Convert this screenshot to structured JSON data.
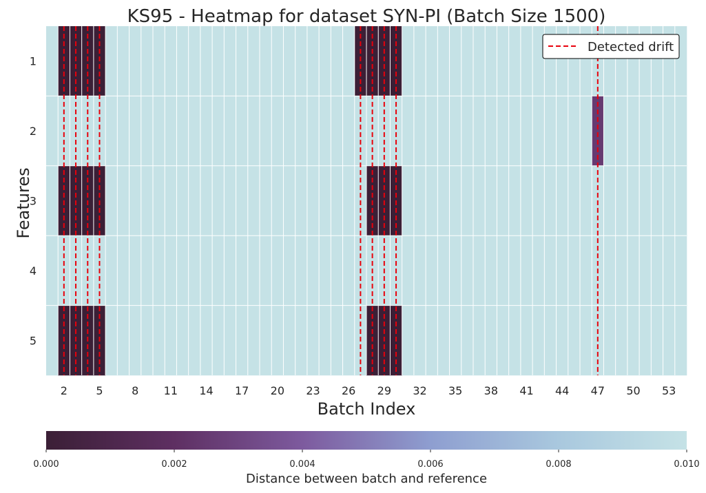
{
  "chart_data": {
    "type": "heatmap",
    "title": "KS95 - Heatmap for dataset SYN-PI (Batch Size 1500)",
    "xlabel": "Batch Index",
    "ylabel": "Features",
    "x_index_start": 1,
    "x_index_end": 54,
    "x_tick_labels": [
      "2",
      "5",
      "8",
      "11",
      "14",
      "17",
      "20",
      "23",
      "26",
      "29",
      "32",
      "35",
      "38",
      "41",
      "44",
      "47",
      "50",
      "53"
    ],
    "y_categories": [
      "1",
      "2",
      "3",
      "4",
      "5"
    ],
    "default_value": 0.01,
    "cells": [
      {
        "feature": "1",
        "batches": [
          2,
          3,
          4,
          5
        ],
        "value": 0.0
      },
      {
        "feature": "1",
        "batches": [
          27,
          28,
          29,
          30
        ],
        "value": 0.0
      },
      {
        "feature": "2",
        "batches": [
          47
        ],
        "value": 0.0025
      },
      {
        "feature": "3",
        "batches": [
          2,
          3,
          4,
          5
        ],
        "value": 0.0
      },
      {
        "feature": "3",
        "batches": [
          28,
          29,
          30
        ],
        "value": 0.0
      },
      {
        "feature": "5",
        "batches": [
          2,
          3,
          4,
          5
        ],
        "value": 0.0
      },
      {
        "feature": "5",
        "batches": [
          28,
          29,
          30
        ],
        "value": 0.0
      }
    ],
    "drift_lines": [
      2.5,
      3.5,
      4.5,
      5.5,
      27.5,
      28.5,
      29.5,
      30.5,
      47.5
    ],
    "legend": {
      "label": "Detected drift",
      "placement": "top-right"
    },
    "colorbar": {
      "label": "Distance between batch and reference",
      "range": [
        0.0,
        0.01
      ],
      "tick_labels": [
        "0.000",
        "0.002",
        "0.004",
        "0.006",
        "0.008",
        "0.010"
      ],
      "colors": [
        "#3b1f36",
        "#5e2f62",
        "#7d5a9e",
        "#8e9ed0",
        "#a9c8de",
        "#c5e2e6"
      ]
    },
    "grid": true,
    "drift_color": "#e8000b"
  }
}
